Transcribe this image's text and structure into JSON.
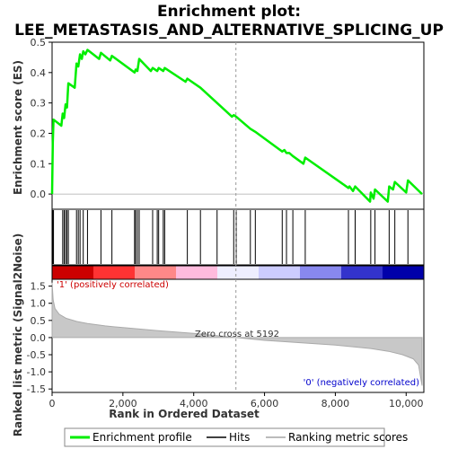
{
  "chart_data": {
    "type": "line",
    "title_line1": "Enrichment plot:",
    "title_line2": "LEE_METASTASIS_AND_ALTERNATIVE_SPLICING_UP",
    "ylabel_top": "Enrichment score (ES)",
    "ylabel_bottom": "Ranked list metric (Signal2Noise)",
    "xlabel": "Rank in Ordered Dataset",
    "xlim": [
      0,
      10500
    ],
    "x_ticks": [
      0,
      2000,
      4000,
      6000,
      8000,
      10000
    ],
    "es_ylim": [
      -0.05,
      0.5
    ],
    "es_ticks": [
      "0.0",
      "0.1",
      "0.2",
      "0.3",
      "0.4",
      "0.5"
    ],
    "metric_ylim": [
      -1.6,
      1.7
    ],
    "metric_ticks": [
      "-1.5",
      "-1.0",
      "-0.5",
      "0.0",
      "0.5",
      "1.0",
      "1.5"
    ],
    "positive_label": "'1' (positively correlated)",
    "negative_label": "'0' (negatively correlated)",
    "zero_cross_label": "Zero cross at 5192",
    "zero_cross": 5192,
    "series": [
      {
        "name": "Enrichment profile",
        "color": "#00ee00",
        "x": [
          0,
          20,
          40,
          260,
          300,
          340,
          380,
          420,
          460,
          640,
          690,
          740,
          790,
          840,
          880,
          940,
          1000,
          1330,
          1380,
          1640,
          1690,
          2330,
          2360,
          2410,
          2460,
          2790,
          2840,
          2970,
          3010,
          3140,
          3180,
          3770,
          3820,
          4190,
          5080,
          5130,
          5200,
          5600,
          5740,
          6500,
          6560,
          6620,
          6700,
          6800,
          7100,
          7150,
          8370,
          8400,
          8500,
          8560,
          8980,
          9000,
          9080,
          9120,
          9480,
          9520,
          9630,
          9680,
          10000,
          10050,
          10450
        ],
        "y": [
          0.0,
          0.17,
          0.245,
          0.225,
          0.265,
          0.25,
          0.295,
          0.285,
          0.365,
          0.35,
          0.43,
          0.42,
          0.46,
          0.445,
          0.47,
          0.46,
          0.475,
          0.445,
          0.465,
          0.44,
          0.455,
          0.4,
          0.41,
          0.405,
          0.445,
          0.405,
          0.415,
          0.405,
          0.415,
          0.405,
          0.415,
          0.37,
          0.38,
          0.35,
          0.255,
          0.26,
          0.255,
          0.215,
          0.205,
          0.14,
          0.145,
          0.135,
          0.135,
          0.125,
          0.1,
          0.12,
          0.02,
          0.025,
          0.01,
          0.025,
          -0.025,
          0.005,
          -0.015,
          0.015,
          -0.025,
          0.025,
          0.015,
          0.04,
          0.005,
          0.045,
          0.0
        ]
      },
      {
        "name": "Hits",
        "color": "#000000",
        "x": [
          20,
          40,
          300,
          340,
          380,
          420,
          460,
          690,
          740,
          790,
          880,
          1000,
          1380,
          1690,
          2330,
          2360,
          2410,
          2460,
          2840,
          2970,
          3010,
          3140,
          3180,
          3820,
          4190,
          4660,
          5130,
          5200,
          5600,
          5740,
          6500,
          6620,
          6800,
          7150,
          8370,
          8560,
          9000,
          9120,
          9520,
          9680,
          10050
        ]
      },
      {
        "name": "Ranking metric scores",
        "color": "#bbbbbb",
        "x": [
          0,
          30,
          80,
          200,
          400,
          700,
          1000,
          1500,
          2000,
          3000,
          4000,
          5192,
          6000,
          7000,
          8000,
          9000,
          9500,
          9900,
          10200,
          10350,
          10450
        ],
        "y": [
          1.6,
          1.1,
          0.85,
          0.68,
          0.56,
          0.47,
          0.41,
          0.34,
          0.29,
          0.2,
          0.12,
          0.0,
          -0.08,
          -0.15,
          -0.22,
          -0.32,
          -0.4,
          -0.5,
          -0.62,
          -0.8,
          -1.4
        ]
      }
    ],
    "color_bar": [
      "#cc0000",
      "#ff3333",
      "#ff8888",
      "#ffbbdd",
      "#eeeeff",
      "#ccccff",
      "#8888ee",
      "#3333cc",
      "#0000aa"
    ],
    "legend": [
      "Enrichment profile",
      "Hits",
      "Ranking metric scores"
    ]
  }
}
